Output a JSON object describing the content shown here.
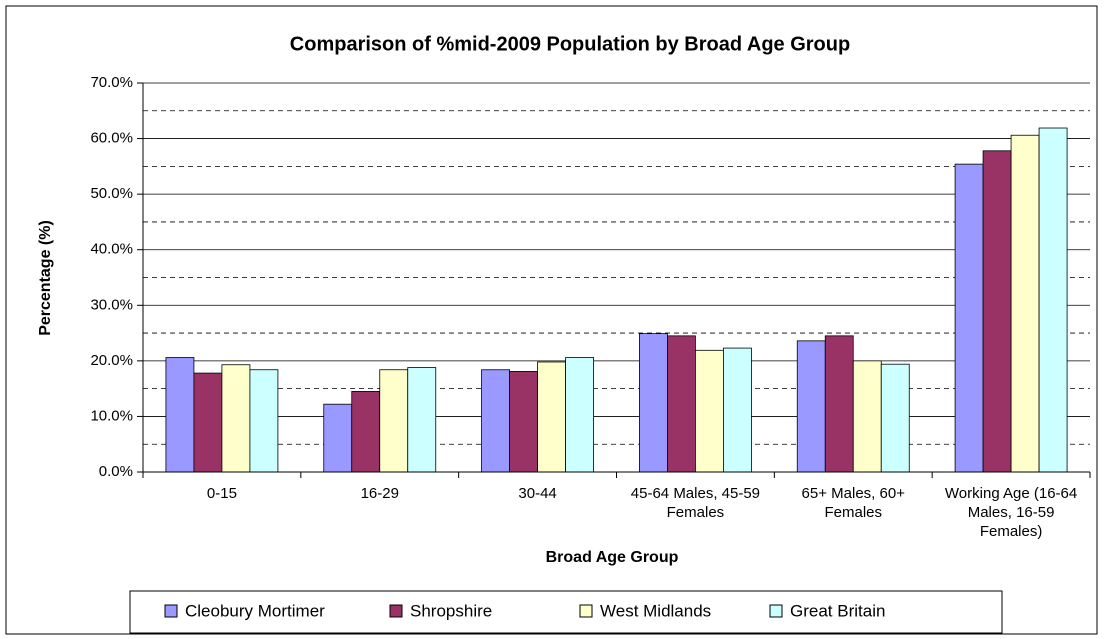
{
  "chart_data": {
    "type": "bar",
    "title": "Comparison of %mid-2009 Population by Broad Age Group",
    "x_label": "Broad Age Group",
    "y_label": "Percentage (%)",
    "categories": [
      "0-15",
      "16-29",
      "30-44",
      "45-64 Males, 45-59 Females",
      "65+ Males, 60+ Females",
      "Working Age (16-64 Males, 16-59 Females)"
    ],
    "series": [
      {
        "name": "Cleobury Mortimer",
        "color": "#9999ff",
        "values": [
          20.6,
          12.2,
          18.4,
          24.9,
          23.6,
          55.4
        ]
      },
      {
        "name": "Shropshire",
        "color": "#993366",
        "values": [
          17.8,
          14.5,
          18.1,
          24.5,
          24.5,
          57.8
        ]
      },
      {
        "name": "West Midlands",
        "color": "#ffffcc",
        "values": [
          19.3,
          18.4,
          19.8,
          21.9,
          20.0,
          60.6
        ]
      },
      {
        "name": "Great Britain",
        "color": "#ccffff",
        "values": [
          18.4,
          18.8,
          20.6,
          22.3,
          19.4,
          61.9
        ]
      }
    ],
    "ylim": [
      0,
      70
    ],
    "yticks": [
      {
        "value": 0,
        "label": "0.0%"
      },
      {
        "value": 10,
        "label": "10.0%"
      },
      {
        "value": 20,
        "label": "20.0%"
      },
      {
        "value": 30,
        "label": "30.0%"
      },
      {
        "value": 40,
        "label": "40.0%"
      },
      {
        "value": 50,
        "label": "50.0%"
      },
      {
        "value": 60,
        "label": "60.0%"
      },
      {
        "value": 70,
        "label": "70.0%"
      }
    ],
    "minor_yticks": [
      5,
      15,
      25,
      35,
      45,
      55,
      65
    ],
    "grid": true,
    "legend": "bottom"
  }
}
